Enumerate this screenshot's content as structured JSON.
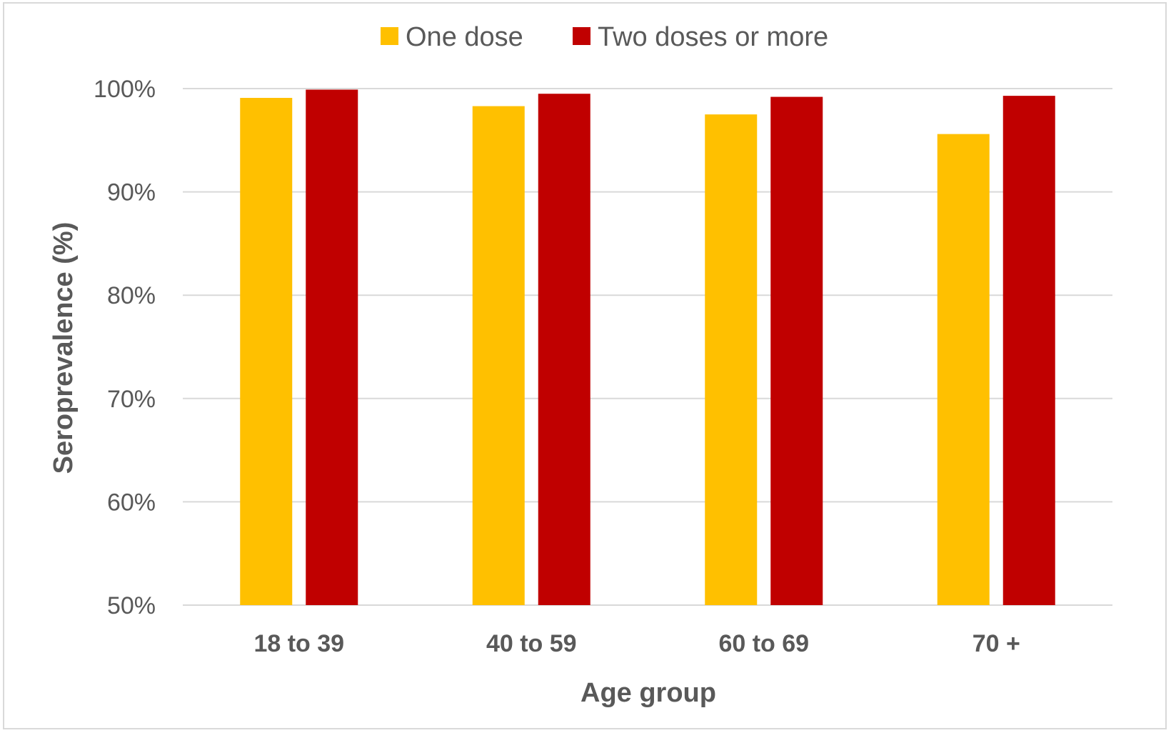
{
  "chart_data": {
    "type": "bar",
    "categories": [
      "18 to 39",
      "40 to 59",
      "60 to 69",
      "70 +"
    ],
    "series": [
      {
        "name": "One dose",
        "color": "#FFC000",
        "values": [
          99.1,
          98.3,
          97.5,
          95.6
        ]
      },
      {
        "name": "Two doses or more",
        "color": "#C00000",
        "values": [
          99.9,
          99.5,
          99.2,
          99.3
        ]
      }
    ],
    "xlabel": "Age group",
    "ylabel": "Seroprevalence (%)",
    "ylim": [
      50,
      100
    ],
    "yticks": [
      50,
      60,
      70,
      80,
      90,
      100
    ],
    "ytick_labels": [
      "50%",
      "60%",
      "70%",
      "80%",
      "90%",
      "100%"
    ],
    "grid": true,
    "gridline_color": "#d9d9d9",
    "legend_position": "top-center"
  }
}
